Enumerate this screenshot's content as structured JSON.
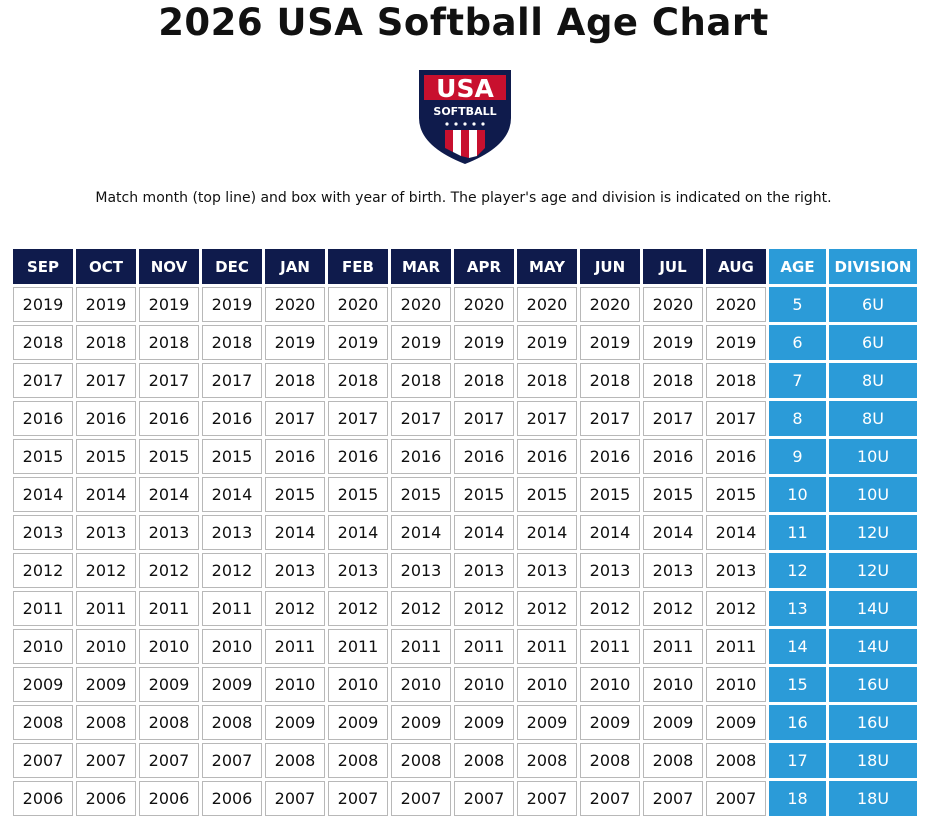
{
  "header": {
    "title": "2026 USA Softball Age Chart",
    "logo": {
      "line1": "USA",
      "line2": "SOFTBALL"
    },
    "instruction": "Match month (top line) and box with year of birth. The player's age and division is indicated on the right."
  },
  "table": {
    "columns": [
      "SEP",
      "OCT",
      "NOV",
      "DEC",
      "JAN",
      "FEB",
      "MAR",
      "APR",
      "MAY",
      "JUN",
      "JUL",
      "AUG",
      "AGE",
      "DIVISION"
    ],
    "rows": [
      [
        2019,
        2019,
        2019,
        2019,
        2020,
        2020,
        2020,
        2020,
        2020,
        2020,
        2020,
        2020,
        5,
        "6U"
      ],
      [
        2018,
        2018,
        2018,
        2018,
        2019,
        2019,
        2019,
        2019,
        2019,
        2019,
        2019,
        2019,
        6,
        "6U"
      ],
      [
        2017,
        2017,
        2017,
        2017,
        2018,
        2018,
        2018,
        2018,
        2018,
        2018,
        2018,
        2018,
        7,
        "8U"
      ],
      [
        2016,
        2016,
        2016,
        2016,
        2017,
        2017,
        2017,
        2017,
        2017,
        2017,
        2017,
        2017,
        8,
        "8U"
      ],
      [
        2015,
        2015,
        2015,
        2015,
        2016,
        2016,
        2016,
        2016,
        2016,
        2016,
        2016,
        2016,
        9,
        "10U"
      ],
      [
        2014,
        2014,
        2014,
        2014,
        2015,
        2015,
        2015,
        2015,
        2015,
        2015,
        2015,
        2015,
        10,
        "10U"
      ],
      [
        2013,
        2013,
        2013,
        2013,
        2014,
        2014,
        2014,
        2014,
        2014,
        2014,
        2014,
        2014,
        11,
        "12U"
      ],
      [
        2012,
        2012,
        2012,
        2012,
        2013,
        2013,
        2013,
        2013,
        2013,
        2013,
        2013,
        2013,
        12,
        "12U"
      ],
      [
        2011,
        2011,
        2011,
        2011,
        2012,
        2012,
        2012,
        2012,
        2012,
        2012,
        2012,
        2012,
        13,
        "14U"
      ],
      [
        2010,
        2010,
        2010,
        2010,
        2011,
        2011,
        2011,
        2011,
        2011,
        2011,
        2011,
        2011,
        14,
        "14U"
      ],
      [
        2009,
        2009,
        2009,
        2009,
        2010,
        2010,
        2010,
        2010,
        2010,
        2010,
        2010,
        2010,
        15,
        "16U"
      ],
      [
        2008,
        2008,
        2008,
        2008,
        2009,
        2009,
        2009,
        2009,
        2009,
        2009,
        2009,
        2009,
        16,
        "16U"
      ],
      [
        2007,
        2007,
        2007,
        2007,
        2008,
        2008,
        2008,
        2008,
        2008,
        2008,
        2008,
        2008,
        17,
        "18U"
      ],
      [
        2006,
        2006,
        2006,
        2006,
        2007,
        2007,
        2007,
        2007,
        2007,
        2007,
        2007,
        2007,
        18,
        "18U"
      ]
    ]
  }
}
